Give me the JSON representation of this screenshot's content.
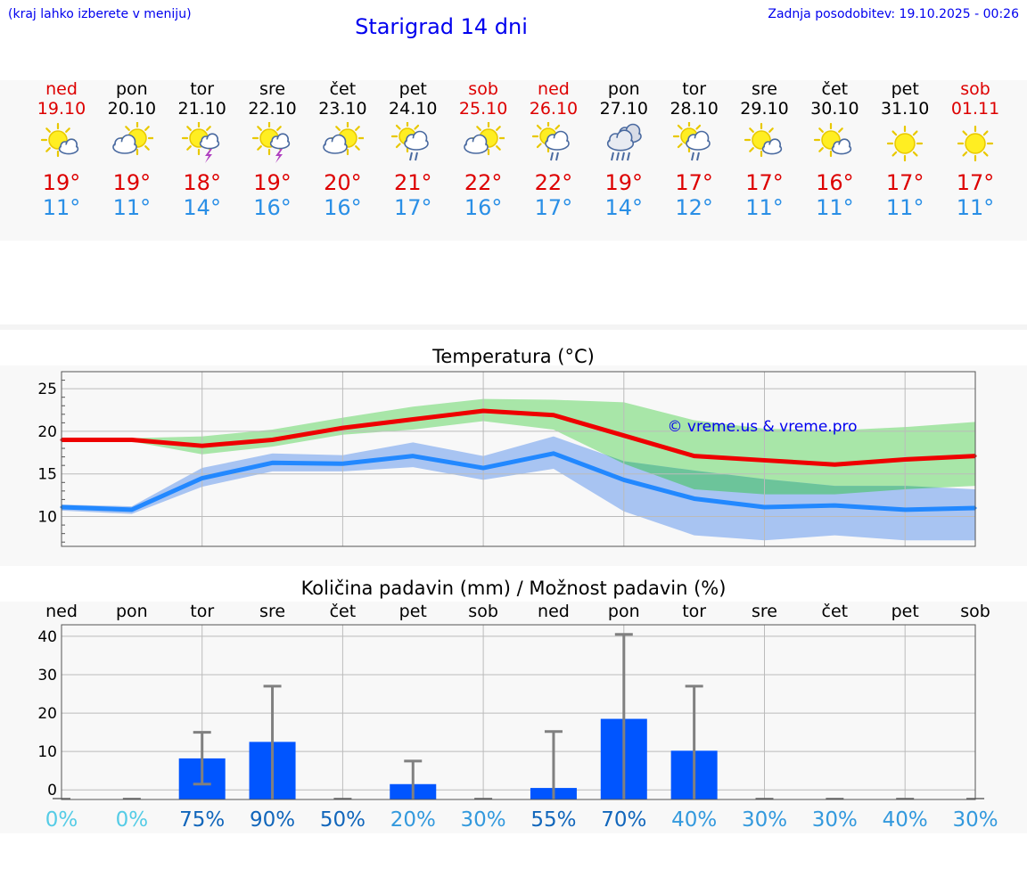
{
  "header": {
    "menu_hint": "(kraj lahko izberete v meniju)",
    "title": "Starigrad 14 dni",
    "last_update": "Zadnja posodobitev: 19.10.2025 - 00:26"
  },
  "days": [
    {
      "name": "ned",
      "date": "19.10",
      "weekend": true,
      "icon": "sun-cloud-icon",
      "tmax": "19°",
      "tmin": "11°"
    },
    {
      "name": "pon",
      "date": "20.10",
      "weekend": false,
      "icon": "cloud-sun-icon",
      "tmax": "19°",
      "tmin": "11°"
    },
    {
      "name": "tor",
      "date": "21.10",
      "weekend": false,
      "icon": "sun-thunderstorm-icon",
      "tmax": "18°",
      "tmin": "14°"
    },
    {
      "name": "sre",
      "date": "22.10",
      "weekend": false,
      "icon": "sun-thunderstorm-icon",
      "tmax": "19°",
      "tmin": "16°"
    },
    {
      "name": "čet",
      "date": "23.10",
      "weekend": false,
      "icon": "cloud-sun-icon",
      "tmax": "20°",
      "tmin": "16°"
    },
    {
      "name": "pet",
      "date": "24.10",
      "weekend": false,
      "icon": "sun-cloud-rain-icon",
      "tmax": "21°",
      "tmin": "17°"
    },
    {
      "name": "sob",
      "date": "25.10",
      "weekend": true,
      "icon": "cloud-sun-icon",
      "tmax": "22°",
      "tmin": "16°"
    },
    {
      "name": "ned",
      "date": "26.10",
      "weekend": true,
      "icon": "sun-cloud-rain-icon",
      "tmax": "22°",
      "tmin": "17°"
    },
    {
      "name": "pon",
      "date": "27.10",
      "weekend": false,
      "icon": "cloud-rain-icon",
      "tmax": "19°",
      "tmin": "14°"
    },
    {
      "name": "tor",
      "date": "28.10",
      "weekend": false,
      "icon": "sun-cloud-rain-icon",
      "tmax": "17°",
      "tmin": "12°"
    },
    {
      "name": "sre",
      "date": "29.10",
      "weekend": false,
      "icon": "sun-cloud-icon",
      "tmax": "17°",
      "tmin": "11°"
    },
    {
      "name": "čet",
      "date": "30.10",
      "weekend": false,
      "icon": "sun-cloud-icon",
      "tmax": "16°",
      "tmin": "11°"
    },
    {
      "name": "pet",
      "date": "31.10",
      "weekend": false,
      "icon": "sun-icon",
      "tmax": "17°",
      "tmin": "11°"
    },
    {
      "name": "sob",
      "date": "01.11",
      "weekend": true,
      "icon": "sun-icon",
      "tmax": "17°",
      "tmin": "11°"
    }
  ],
  "colors": {
    "max_line": "#ee0000",
    "min_line": "#2288ff",
    "max_band": "#a8e6a8",
    "min_band": "#a8c4f2",
    "overlap": "#6cc49a",
    "bar": "#0055ff",
    "errorbar": "#808080",
    "weekend": "#dd0000",
    "tmin_text": "#2a8fe6",
    "watermark": "#0000ee"
  },
  "chart_data": [
    {
      "type": "line",
      "title": "Temperatura (°C)",
      "watermark": "© vreme.us & vreme.pro",
      "ylim": [
        6.5,
        27
      ],
      "yticks": [
        10,
        15,
        20,
        25
      ],
      "x": [
        0,
        1,
        2,
        3,
        4,
        5,
        6,
        7,
        8,
        9,
        10,
        11,
        12,
        13
      ],
      "series": [
        {
          "name": "max",
          "values": [
            19,
            19,
            18.3,
            19,
            20.4,
            21.4,
            22.4,
            21.9,
            19.5,
            17.1,
            16.6,
            16.1,
            16.7,
            17.1
          ],
          "band_low": [
            19,
            18.8,
            17.3,
            18.2,
            19.6,
            20.2,
            21.2,
            20.2,
            16.2,
            13.2,
            12.6,
            12.6,
            13.2,
            13.6
          ],
          "band_high": [
            19.2,
            19.2,
            19.4,
            20.2,
            21.6,
            22.9,
            23.8,
            23.7,
            23.4,
            21.3,
            20.3,
            20.1,
            20.5,
            21.1
          ]
        },
        {
          "name": "min",
          "values": [
            11.1,
            10.8,
            14.5,
            16.3,
            16.2,
            17.1,
            15.7,
            17.4,
            14.3,
            12.1,
            11.1,
            11.3,
            10.8,
            11
          ],
          "band_low": [
            10.7,
            10.3,
            13.5,
            15.3,
            15.3,
            15.8,
            14.3,
            15.6,
            10.6,
            7.8,
            7.2,
            7.8,
            7.2,
            7.2
          ],
          "band_high": [
            11.4,
            11.2,
            15.7,
            17.4,
            17.2,
            18.7,
            17.1,
            19.4,
            16.5,
            15.4,
            14.4,
            13.6,
            13.6,
            13.2
          ]
        }
      ]
    },
    {
      "type": "bar",
      "title": "Količina padavin (mm) / Možnost padavin (%)",
      "ylim": [
        -2.5,
        43
      ],
      "yticks": [
        0,
        10,
        20,
        30,
        40
      ],
      "categories": [
        "ned",
        "pon",
        "tor",
        "sre",
        "čet",
        "pet",
        "sob",
        "ned",
        "pon",
        "tor",
        "sre",
        "čet",
        "pet",
        "sob"
      ],
      "values": [
        0,
        0,
        8.2,
        12.5,
        0,
        1.5,
        0,
        0.5,
        18.5,
        10.2,
        0,
        0,
        0,
        0
      ],
      "error_low": [
        0,
        0,
        1.5,
        0,
        0,
        0,
        0,
        0,
        0,
        0,
        0,
        0,
        0,
        0
      ],
      "error_high": [
        0,
        0,
        15,
        27,
        0,
        7.5,
        0,
        15.2,
        40.5,
        27,
        0,
        0,
        0,
        0
      ],
      "probability": [
        "0%",
        "0%",
        "75%",
        "90%",
        "50%",
        "20%",
        "30%",
        "55%",
        "70%",
        "40%",
        "30%",
        "30%",
        "40%",
        "30%"
      ],
      "probability_colors": [
        "#55cce6",
        "#55cce6",
        "#1166bb",
        "#1166bb",
        "#1166bb",
        "#3399dd",
        "#3399dd",
        "#1166bb",
        "#1166bb",
        "#3399dd",
        "#3399dd",
        "#3399dd",
        "#3399dd",
        "#3399dd"
      ]
    }
  ]
}
